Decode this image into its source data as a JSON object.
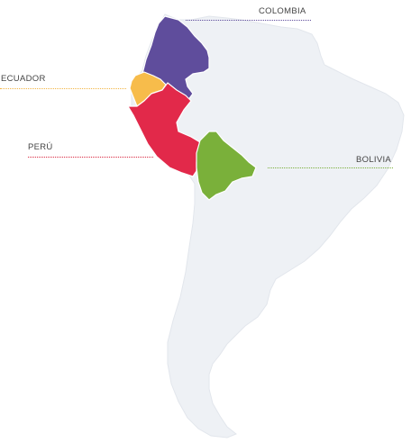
{
  "map": {
    "land_color": "#eef1f5",
    "land_stroke": "#e2e6ec",
    "countries": [
      {
        "id": "colombia",
        "label": "COLOMBIA",
        "color": "#5f4d9c",
        "line_color": "#5f4d9c"
      },
      {
        "id": "ecuador",
        "label": "ECUADOR",
        "color": "#f7bc4b",
        "line_color": "#f2b441"
      },
      {
        "id": "peru",
        "label": "PERÚ",
        "color": "#e2294a",
        "line_color": "#d9263f"
      },
      {
        "id": "bolivia",
        "label": "BOLIVIA",
        "color": "#7ab03a",
        "line_color": "#79ae39"
      }
    ]
  }
}
